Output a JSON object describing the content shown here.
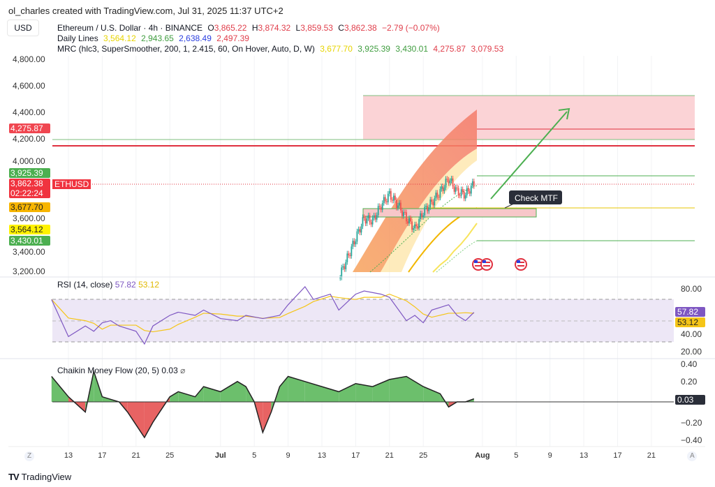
{
  "credit": "ol_charles created with TradingView.com, Jul 31, 2025 11:37 UTC+2",
  "currency": "USD",
  "symbol": {
    "title": "Ethereum / U.S. Dollar · 4h · BINANCE",
    "o_label": "O",
    "o": "3,865.22",
    "h_label": "H",
    "h": "3,874.32",
    "l_label": "L",
    "l": "3,859.53",
    "c_label": "C",
    "c": "3,862.38",
    "change": "−2.79 (−0.07%)"
  },
  "daily_lines": {
    "label": "Daily Lines",
    "values": [
      "3,564.12",
      "2,943.65",
      "2,638.49",
      "2,497.39"
    ]
  },
  "mrc": {
    "label": "MRC (hlc3, SuperSmoother, 200, 1, 2.415, 60, On Hover, Auto, D, W)",
    "values": [
      "3,677.70",
      "3,925.39",
      "3,430.01",
      "4,275.87",
      "3,079.53"
    ]
  },
  "price_axis": [
    "4,800.00",
    "4,600.00",
    "4,400.00",
    "4,200.00",
    "4,000.00",
    "3,600.00",
    "3,400.00",
    "3,200.00"
  ],
  "price_tags": {
    "r1": "4,275.87",
    "g1": "3,925.39",
    "last": "3,862.38",
    "countdown": "02:22:24",
    "ticker": "ETHUSD",
    "yellow1": "3,677.70",
    "yellow2": "3,564.12",
    "g2": "3,430.01"
  },
  "annotation": "Check MTF",
  "rsi": {
    "label": "RSI (14, close)",
    "value": "57.82",
    "ma": "53.12",
    "axis": [
      "80.00",
      "40.00",
      "20.00"
    ],
    "points": [
      [
        "2025-06-11",
        70
      ],
      [
        "2025-06-13",
        35
      ],
      [
        "2025-06-15",
        45
      ],
      [
        "2025-06-16",
        40
      ],
      [
        "2025-06-17",
        48
      ],
      [
        "2025-06-18",
        50
      ],
      [
        "2025-06-19",
        45
      ],
      [
        "2025-06-21",
        40
      ],
      [
        "2025-06-22",
        28
      ],
      [
        "2025-06-23",
        45
      ],
      [
        "2025-06-25",
        55
      ],
      [
        "2025-06-26",
        58
      ],
      [
        "2025-06-28",
        55
      ],
      [
        "2025-06-29",
        60
      ],
      [
        "2025-07-01",
        52
      ],
      [
        "2025-07-03",
        50
      ],
      [
        "2025-07-04",
        55
      ],
      [
        "2025-07-06",
        52
      ],
      [
        "2025-07-08",
        55
      ],
      [
        "2025-07-09",
        65
      ],
      [
        "2025-07-11",
        82
      ],
      [
        "2025-07-12",
        70
      ],
      [
        "2025-07-14",
        75
      ],
      [
        "2025-07-15",
        60
      ],
      [
        "2025-07-17",
        75
      ],
      [
        "2025-07-18",
        78
      ],
      [
        "2025-07-20",
        75
      ],
      [
        "2025-07-21",
        72
      ],
      [
        "2025-07-23",
        50
      ],
      [
        "2025-07-24",
        55
      ],
      [
        "2025-07-25",
        48
      ],
      [
        "2025-07-26",
        60
      ],
      [
        "2025-07-28",
        65
      ],
      [
        "2025-07-29",
        55
      ],
      [
        "2025-07-30",
        50
      ],
      [
        "2025-07-31",
        57.82
      ]
    ]
  },
  "cmf": {
    "label": "Chaikin Money Flow (20, 5)",
    "value": "0.03",
    "axis": [
      "0.40",
      "0.20",
      "−0.20",
      "−0.40"
    ],
    "points": [
      [
        "2025-06-11",
        0.25
      ],
      [
        "2025-06-13",
        0.05
      ],
      [
        "2025-06-15",
        -0.1
      ],
      [
        "2025-06-16",
        0.3
      ],
      [
        "2025-06-17",
        0.05
      ],
      [
        "2025-06-19",
        0.0
      ],
      [
        "2025-06-20",
        -0.1
      ],
      [
        "2025-06-22",
        -0.35
      ],
      [
        "2025-06-23",
        -0.2
      ],
      [
        "2025-06-25",
        0.05
      ],
      [
        "2025-06-26",
        0.1
      ],
      [
        "2025-06-28",
        0.05
      ],
      [
        "2025-06-29",
        0.15
      ],
      [
        "2025-07-01",
        0.1
      ],
      [
        "2025-07-03",
        0.2
      ],
      [
        "2025-07-04",
        0.15
      ],
      [
        "2025-07-05",
        0.0
      ],
      [
        "2025-07-06",
        -0.3
      ],
      [
        "2025-07-07",
        -0.1
      ],
      [
        "2025-07-08",
        0.15
      ],
      [
        "2025-07-09",
        0.25
      ],
      [
        "2025-07-11",
        0.2
      ],
      [
        "2025-07-13",
        0.15
      ],
      [
        "2025-07-15",
        0.1
      ],
      [
        "2025-07-17",
        0.18
      ],
      [
        "2025-07-19",
        0.15
      ],
      [
        "2025-07-21",
        0.22
      ],
      [
        "2025-07-23",
        0.25
      ],
      [
        "2025-07-25",
        0.15
      ],
      [
        "2025-07-27",
        0.08
      ],
      [
        "2025-07-28",
        -0.05
      ],
      [
        "2025-07-29",
        0.0
      ],
      [
        "2025-07-30",
        0.0
      ],
      [
        "2025-07-31",
        0.03
      ]
    ]
  },
  "price_points": [
    [
      "2025-07-15",
      3150
    ],
    [
      "2025-07-16",
      3300
    ],
    [
      "2025-07-17",
      3450
    ],
    [
      "2025-07-18",
      3600
    ],
    [
      "2025-07-19",
      3580
    ],
    [
      "2025-07-20",
      3700
    ],
    [
      "2025-07-21",
      3780
    ],
    [
      "2025-07-22",
      3700
    ],
    [
      "2025-07-23",
      3600
    ],
    [
      "2025-07-24",
      3520
    ],
    [
      "2025-07-25",
      3650
    ],
    [
      "2025-07-26",
      3720
    ],
    [
      "2025-07-27",
      3800
    ],
    [
      "2025-07-28",
      3900
    ],
    [
      "2025-07-29",
      3800
    ],
    [
      "2025-07-30",
      3780
    ],
    [
      "2025-07-31",
      3862.38
    ]
  ],
  "time_axis": [
    "13",
    "17",
    "21",
    "25",
    "Jul",
    "5",
    "9",
    "13",
    "17",
    "21",
    "25",
    "Aug",
    "5",
    "9",
    "13",
    "17",
    "21"
  ],
  "time_dates": [
    "2025-06-13",
    "2025-06-17",
    "2025-06-21",
    "2025-06-25",
    "2025-07-01",
    "2025-07-05",
    "2025-07-09",
    "2025-07-13",
    "2025-07-17",
    "2025-07-21",
    "2025-07-25",
    "2025-08-01",
    "2025-08-05",
    "2025-08-09",
    "2025-08-13",
    "2025-08-17",
    "2025-08-21"
  ],
  "footer": "TradingView",
  "colors": {
    "up": "#26a69a",
    "down": "#ef5350",
    "zone": "#fbd3d6",
    "rsi": "#7e57c2",
    "rsi_ma": "#f5c518",
    "cmf_pos": "#6cbf6c",
    "cmf_neg": "#e86363"
  }
}
